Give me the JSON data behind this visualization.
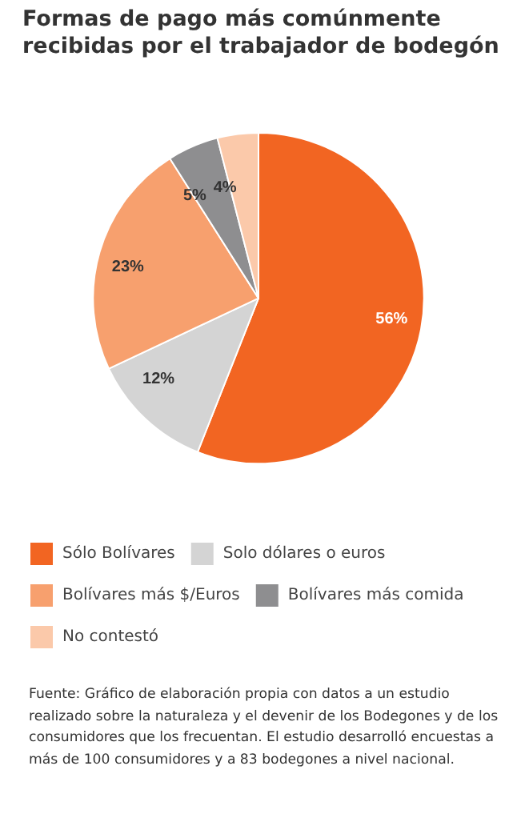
{
  "chart_data": {
    "type": "pie",
    "title": "Formas de pago más comúnmente recibidas por el trabajador de bodegón",
    "categories": [
      "Sólo Bolívares",
      "Solo dólares o euros",
      "Bolívares más $/Euros",
      "Bolívares más comida",
      "No contestó"
    ],
    "values": [
      56,
      12,
      23,
      5,
      4
    ],
    "colors": [
      "#f26522",
      "#d4d4d4",
      "#f7a06e",
      "#8e8e90",
      "#fbc9aa"
    ],
    "value_labels": [
      "56%",
      "12%",
      "23%",
      "5%",
      "4%"
    ],
    "legend": "bottom",
    "annotations": [
      "Fuente: Gráfico de elaboración propia con datos a un estudio realizado sobre la naturaleza y el devenir de los Bodegones y de los consumidores que los frecuentan. El estudio desarrolló encuestas a más de 100 consumidores y a 83 bodegones a nivel nacional."
    ]
  }
}
